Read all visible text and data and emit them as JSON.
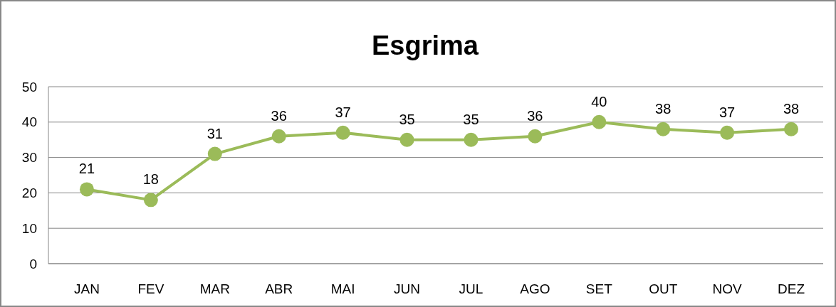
{
  "chart_data": {
    "type": "line",
    "title": "Esgrima",
    "categories": [
      "JAN",
      "FEV",
      "MAR",
      "ABR",
      "MAI",
      "JUN",
      "JUL",
      "AGO",
      "SET",
      "OUT",
      "NOV",
      "DEZ"
    ],
    "series": [
      {
        "color": "#9bbb59",
        "values": [
          21,
          18,
          31,
          36,
          37,
          35,
          35,
          36,
          40,
          38,
          37,
          38
        ]
      }
    ],
    "ylim": [
      0,
      50
    ],
    "yticks": [
      0,
      10,
      20,
      30,
      40,
      50
    ],
    "grid": "y",
    "marker": "circle",
    "line_style": "solid",
    "data_labels": true
  }
}
